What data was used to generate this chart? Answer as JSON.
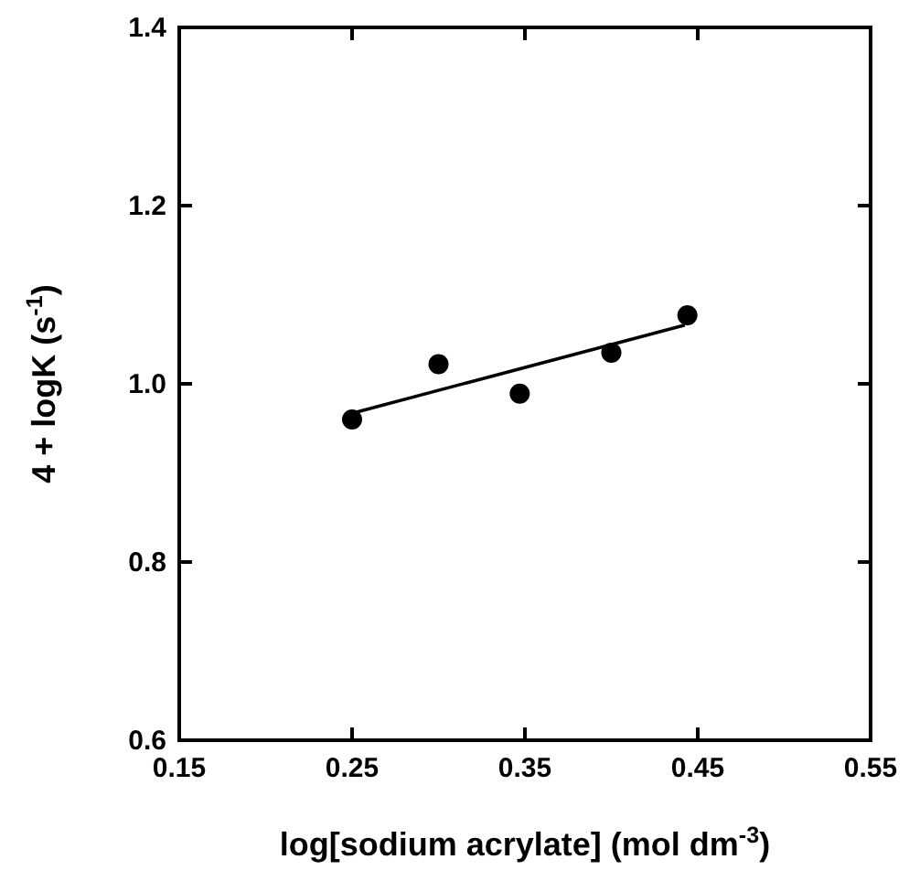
{
  "chart_data": {
    "type": "scatter",
    "xlabel": "log[sodium acrylate] (mol dm$^{-3}$)",
    "ylabel": "4 + logK (s$^{-1}$)",
    "xlim": [
      0.15,
      0.55
    ],
    "xticks": [
      0.15,
      0.25,
      0.35,
      0.45,
      0.55
    ],
    "ylim": [
      0.6,
      1.4
    ],
    "yticks": [
      0.6,
      0.8,
      {
        "value": 1.0,
        "label": "1.0"
      },
      1.2,
      1.4
    ],
    "grid": false,
    "marker": "circle",
    "series": [
      {
        "color": "#000000",
        "x": [
          0.25,
          0.3,
          0.347,
          0.4,
          0.444
        ],
        "values": [
          0.96,
          1.022,
          0.989,
          1.035,
          1.077
        ]
      },
      {
        "type": "line",
        "color": "#000000",
        "marker": "none",
        "line_style": "solid",
        "x": [
          0.25,
          0.4425
        ],
        "values": [
          0.967,
          1.066
        ]
      }
    ]
  }
}
